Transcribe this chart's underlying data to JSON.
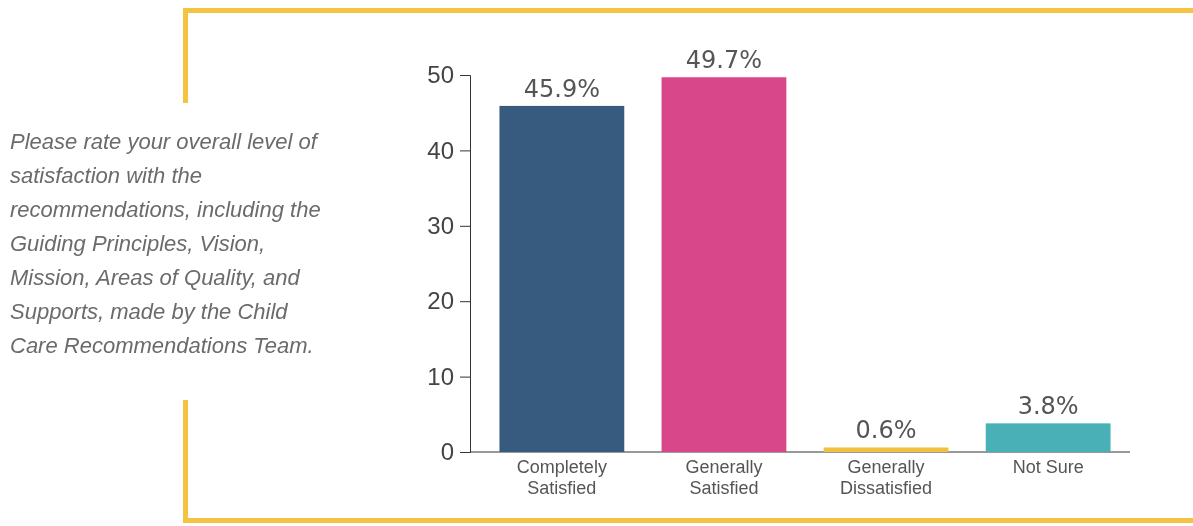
{
  "chart_data": {
    "type": "bar",
    "title": "Please rate your overall level of satisfaction with the recommendations, including the Guiding Principles, Vision, Mission, Areas of Quality, and Supports, made by the Child Care Recommendations Team.",
    "categories": [
      "Completely Satisfied",
      "Generally Satisfied",
      "Generally Dissatisfied",
      "Not Sure"
    ],
    "values": [
      45.9,
      49.7,
      0.6,
      3.8
    ],
    "colors": [
      "#375a7f",
      "#d9478b",
      "#f0c040",
      "#4ab0b8"
    ],
    "value_labels": [
      "45.9%",
      "49.7%",
      "0.6%",
      "3.8%"
    ],
    "ylim": [
      0,
      50
    ],
    "yticks": [
      0,
      10,
      20,
      30,
      40,
      50
    ],
    "grid": false
  }
}
